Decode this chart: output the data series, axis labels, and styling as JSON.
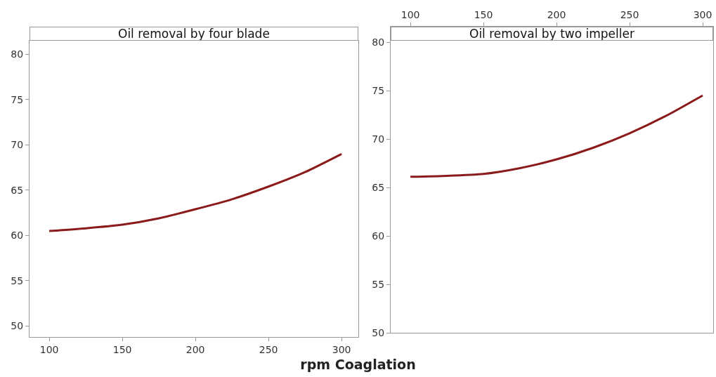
{
  "chart_data": [
    {
      "type": "line",
      "title": "Oil removal by four blade",
      "xlabel": "rpm Coaglation",
      "x": [
        100,
        125,
        150,
        175,
        200,
        225,
        250,
        275,
        300
      ],
      "series": [
        {
          "color": "#8b1a1a",
          "values": [
            60.5,
            60.8,
            61.2,
            61.9,
            62.9,
            64.0,
            65.4,
            67.0,
            69.0
          ]
        }
      ],
      "xlim": [
        86.5,
        311.5
      ],
      "xticks": [
        100,
        150,
        200,
        250,
        300
      ],
      "ylim": [
        48.8,
        81.5
      ],
      "yticks": [
        50,
        55,
        60,
        65,
        70,
        75,
        80
      ],
      "grid": false,
      "marker": "none",
      "line_style": "solid"
    },
    {
      "type": "line",
      "title": "Oil removal by two impeller",
      "x": [
        100,
        125,
        150,
        175,
        200,
        225,
        250,
        275,
        300
      ],
      "series": [
        {
          "color": "#8b1a1a",
          "values": [
            66.1,
            66.2,
            66.4,
            67.0,
            67.9,
            69.1,
            70.6,
            72.4,
            74.5
          ]
        }
      ],
      "xlim": [
        86.5,
        307.2
      ],
      "xticks": [
        100,
        150,
        200,
        250,
        300
      ],
      "ylim": [
        50,
        81.6
      ],
      "yticks": [
        50,
        55,
        60,
        65,
        70,
        75,
        80
      ],
      "grid": false,
      "marker": "none",
      "line_style": "solid"
    }
  ]
}
